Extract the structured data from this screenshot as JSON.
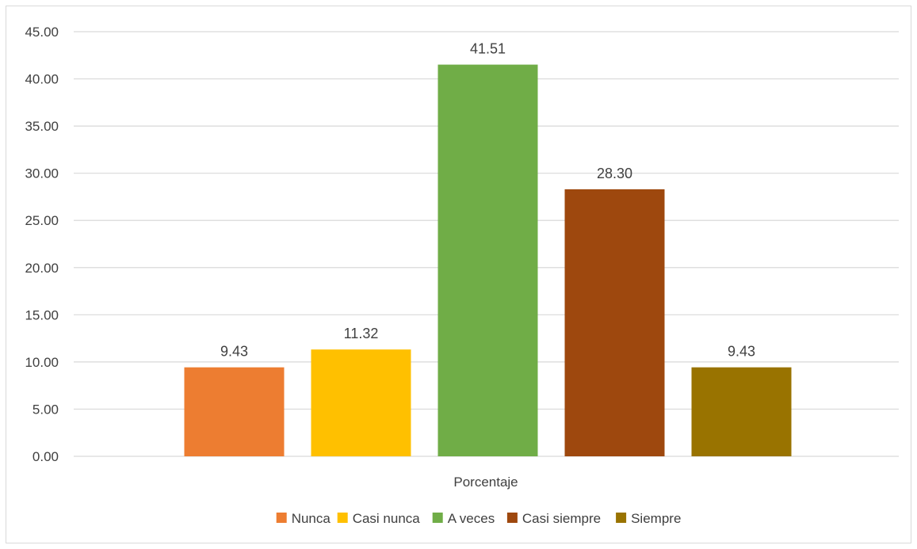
{
  "chart_data": {
    "type": "bar",
    "title": "",
    "xlabel": "Porcentaje",
    "ylabel": "",
    "ylim": [
      0,
      45
    ],
    "y_tick_step": 5,
    "y_tick_decimals": 2,
    "grid": true,
    "legend_position": "bottom",
    "categories": [
      "Porcentaje"
    ],
    "series": [
      {
        "name": "Nunca",
        "values": [
          9.43
        ],
        "color": "#ED7D31"
      },
      {
        "name": "Casi nunca",
        "values": [
          11.32
        ],
        "color": "#FFC000"
      },
      {
        "name": "A veces",
        "values": [
          41.51
        ],
        "color": "#70AD47"
      },
      {
        "name": "Casi siempre",
        "values": [
          28.3
        ],
        "color": "#9E480E"
      },
      {
        "name": "Siempre",
        "values": [
          9.43
        ],
        "color": "#997300"
      }
    ],
    "data_labels": [
      "9.43",
      "11.32",
      "41.51",
      "28.30",
      "9.43"
    ]
  }
}
